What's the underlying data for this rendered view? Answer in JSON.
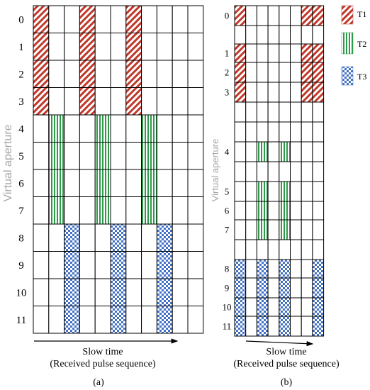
{
  "panel_a": {
    "row_labels": [
      "0",
      "1",
      "2",
      "3",
      "4",
      "5",
      "6",
      "7",
      "8",
      "9",
      "10",
      "11"
    ],
    "y_axis_label": "Virtual aperture",
    "x_axis_label": "Slow time",
    "x_axis_sublabel": "(Received pulse sequence)",
    "caption": "(a)",
    "columns": 11,
    "rows": 12,
    "filled": {
      "T1": {
        "rows": [
          0,
          1,
          2,
          3
        ],
        "cols": [
          0,
          3,
          6
        ]
      },
      "T2": {
        "rows": [
          4,
          5,
          6,
          7
        ],
        "cols": [
          1,
          4,
          7
        ]
      },
      "T3": {
        "rows": [
          8,
          9,
          10,
          11
        ],
        "cols": [
          2,
          5,
          8
        ]
      }
    }
  },
  "panel_b": {
    "row_labels": [
      "0",
      "1",
      "2",
      "3",
      "4",
      "5",
      "6",
      "7",
      "8",
      "9",
      "10",
      "11"
    ],
    "y_axis_label": "Virtual aperture",
    "x_axis_label": "Slow time",
    "x_axis_sublabel": "(Received pulse sequence)",
    "caption": "(b)",
    "columns": 8,
    "rows": 12,
    "filled": {
      "T1": {
        "rows": [
          0,
          1,
          2,
          3
        ],
        "cols": [
          0,
          6,
          7
        ]
      },
      "T2": {
        "rows": [
          4,
          5,
          6,
          7
        ],
        "cols": [
          2,
          4
        ]
      },
      "T3": {
        "rows": [
          8,
          9,
          10,
          11
        ],
        "cols": [
          0,
          2,
          4,
          7
        ]
      }
    }
  },
  "legend": [
    {
      "label": "T1",
      "pattern": "diagonal-stripes",
      "color": "#c0392b"
    },
    {
      "label": "T2",
      "pattern": "vertical-stripes",
      "color": "#2e9a4a"
    },
    {
      "label": "T3",
      "pattern": "checker",
      "color": "#4472c4"
    }
  ]
}
